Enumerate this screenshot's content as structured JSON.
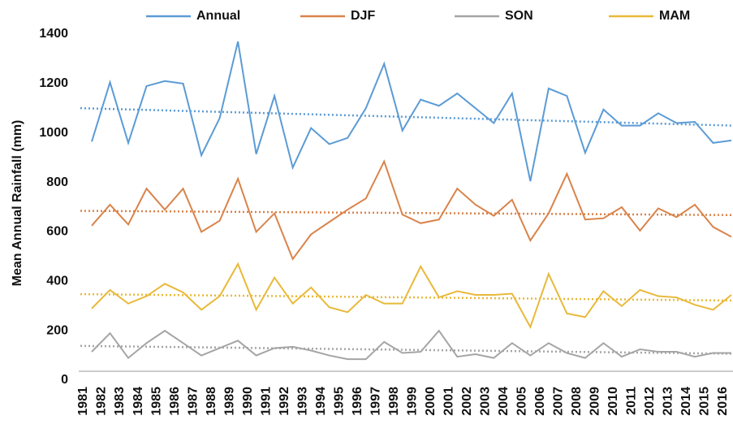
{
  "chart_data": {
    "type": "line",
    "y_label": "Mean Annual Rainfall (mm)",
    "x": [
      1981,
      1982,
      1983,
      1984,
      1985,
      1986,
      1987,
      1988,
      1989,
      1990,
      1991,
      1992,
      1993,
      1994,
      1995,
      1996,
      1997,
      1998,
      1999,
      2000,
      2001,
      2002,
      2003,
      2004,
      2005,
      2006,
      2007,
      2008,
      2009,
      2010,
      2011,
      2012,
      2013,
      2014,
      2015,
      2016
    ],
    "series": [
      {
        "name": "Annual",
        "color": "#5b9bd5",
        "values": [
          965,
          1205,
          960,
          1190,
          1210,
          1200,
          910,
          1060,
          1370,
          915,
          1150,
          860,
          1020,
          955,
          980,
          1100,
          1280,
          1010,
          1135,
          1110,
          1160,
          1100,
          1040,
          1160,
          805,
          1180,
          1150,
          920,
          1095,
          1030,
          1030,
          1080,
          1040,
          1045,
          960,
          970
        ]
      },
      {
        "name": "DJF",
        "color": "#d9834a",
        "values": [
          625,
          710,
          630,
          775,
          690,
          775,
          600,
          645,
          815,
          600,
          675,
          490,
          590,
          640,
          690,
          735,
          885,
          670,
          635,
          650,
          775,
          710,
          665,
          730,
          565,
          675,
          835,
          650,
          655,
          700,
          605,
          695,
          660,
          710,
          620,
          580
        ]
      },
      {
        "name": "SON",
        "color": "#a5a5a5",
        "values": [
          115,
          190,
          90,
          150,
          200,
          150,
          100,
          130,
          160,
          100,
          130,
          135,
          120,
          100,
          85,
          85,
          155,
          110,
          115,
          200,
          95,
          105,
          90,
          150,
          100,
          150,
          110,
          90,
          150,
          95,
          125,
          115,
          115,
          95,
          110,
          110
        ]
      },
      {
        "name": "MAM",
        "color": "#e8b93a",
        "values": [
          290,
          365,
          310,
          340,
          390,
          355,
          285,
          340,
          470,
          285,
          415,
          310,
          375,
          295,
          275,
          345,
          310,
          310,
          460,
          335,
          360,
          345,
          345,
          350,
          215,
          430,
          270,
          255,
          360,
          300,
          365,
          340,
          335,
          305,
          285,
          345
        ]
      }
    ],
    "ylim": [
      0,
      1400
    ],
    "yticks": [
      0,
      200,
      400,
      600,
      800,
      1000,
      1200,
      1400
    ],
    "trendline": true,
    "legend": "top"
  }
}
